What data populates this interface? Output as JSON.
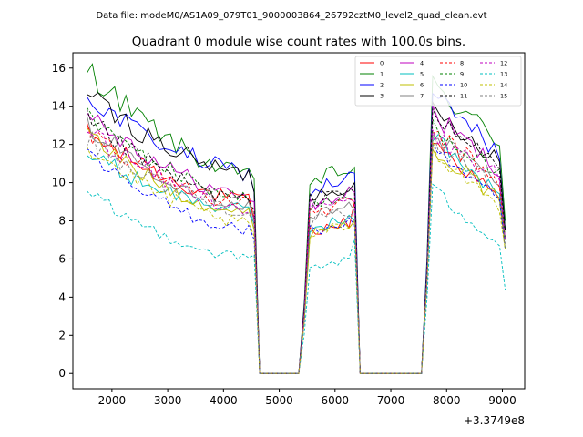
{
  "suptitle": "Data file: modeM0/AS1A09_079T01_9000003864_26792cztM0_level2_quad_clean.evt",
  "chart_data": {
    "type": "line",
    "title": "Quadrant 0 module wise count rates with 100.0s bins.",
    "xlabel": "",
    "ylabel": "",
    "x_offset_label": "+3.3749e8",
    "xlim": [
      1300,
      9400
    ],
    "ylim": [
      -0.8,
      16.8
    ],
    "x_ticks": [
      2000,
      3000,
      4000,
      5000,
      6000,
      7000,
      8000,
      9000
    ],
    "x_tick_labels": [
      "2000",
      "3000",
      "4000",
      "5000",
      "6000",
      "7000",
      "8000",
      "9000"
    ],
    "y_ticks": [
      0,
      2,
      4,
      6,
      8,
      10,
      12,
      14,
      16
    ],
    "y_tick_labels": [
      "0",
      "2",
      "4",
      "6",
      "8",
      "10",
      "12",
      "14",
      "16"
    ],
    "legend_location": "top-right",
    "segments": [
      {
        "x_start": 1550,
        "x_end": 4550,
        "step": 100
      },
      {
        "x_start": 5450,
        "x_end": 6350,
        "step": 100
      },
      {
        "x_start": 7650,
        "x_end": 9050,
        "step": 100
      }
    ],
    "series": [
      {
        "name": "0",
        "color": "#ff0000",
        "dash": "solid",
        "levels": [
          12.6,
          9.0,
          8.0,
          12.5
        ],
        "end_values": [
          8.0,
          9.0,
          7.0
        ]
      },
      {
        "name": "1",
        "color": "#008000",
        "dash": "solid",
        "levels": [
          16.0,
          10.3,
          10.8,
          15.3
        ],
        "end_values": [
          10.2,
          10.8,
          8.0
        ]
      },
      {
        "name": "2",
        "color": "#0000ff",
        "dash": "solid",
        "levels": [
          14.5,
          10.5,
          10.3,
          14.8
        ],
        "end_values": [
          9.5,
          10.5,
          7.5
        ]
      },
      {
        "name": "3",
        "color": "#000000",
        "dash": "solid",
        "levels": [
          14.6,
          10.4,
          10.0,
          14.0
        ],
        "end_values": [
          9.5,
          10.0,
          7.5
        ]
      },
      {
        "name": "4",
        "color": "#bf00bf",
        "dash": "solid",
        "levels": [
          13.8,
          9.2,
          9.5,
          13.8
        ],
        "end_values": [
          9.0,
          9.5,
          7.0
        ]
      },
      {
        "name": "5",
        "color": "#00bfbf",
        "dash": "solid",
        "levels": [
          11.5,
          8.5,
          8.2,
          12.8
        ],
        "end_values": [
          7.8,
          8.0,
          6.5
        ]
      },
      {
        "name": "6",
        "color": "#bfbf00",
        "dash": "solid",
        "levels": [
          12.5,
          8.3,
          8.0,
          12.2
        ],
        "end_values": [
          7.5,
          8.0,
          6.5
        ]
      },
      {
        "name": "7",
        "color": "#808080",
        "dash": "solid",
        "levels": [
          13.0,
          8.8,
          8.8,
          12.8
        ],
        "end_values": [
          8.0,
          8.5,
          7.0
        ]
      },
      {
        "name": "8",
        "color": "#ff0000",
        "dash": "dashed",
        "levels": [
          12.8,
          8.8,
          9.0,
          12.8
        ],
        "end_values": [
          8.2,
          9.0,
          7.0
        ]
      },
      {
        "name": "9",
        "color": "#008000",
        "dash": "dashed",
        "levels": [
          13.5,
          9.2,
          9.3,
          13.2
        ],
        "end_values": [
          8.5,
          9.2,
          7.0
        ]
      },
      {
        "name": "10",
        "color": "#0000ff",
        "dash": "dashed",
        "levels": [
          11.3,
          7.5,
          8.0,
          11.8
        ],
        "end_values": [
          7.0,
          7.8,
          6.5
        ]
      },
      {
        "name": "11",
        "color": "#000000",
        "dash": "dashed",
        "levels": [
          13.3,
          9.0,
          9.8,
          13.5
        ],
        "end_values": [
          8.5,
          9.5,
          7.5
        ]
      },
      {
        "name": "12",
        "color": "#bf00bf",
        "dash": "dashed",
        "levels": [
          12.8,
          8.6,
          9.2,
          12.6
        ],
        "end_values": [
          8.2,
          9.0,
          7.0
        ]
      },
      {
        "name": "13",
        "color": "#00bfbf",
        "dash": "dashed",
        "levels": [
          9.4,
          6.0,
          6.0,
          9.8
        ],
        "end_values": [
          6.2,
          7.0,
          4.4
        ]
      },
      {
        "name": "14",
        "color": "#bfbf00",
        "dash": "dashed",
        "levels": [
          11.8,
          7.8,
          7.8,
          12.0
        ],
        "end_values": [
          7.2,
          8.0,
          6.5
        ]
      },
      {
        "name": "15",
        "color": "#808080",
        "dash": "dashed",
        "levels": [
          12.3,
          8.5,
          8.5,
          12.5
        ],
        "end_values": [
          7.8,
          8.5,
          6.8
        ]
      }
    ]
  }
}
